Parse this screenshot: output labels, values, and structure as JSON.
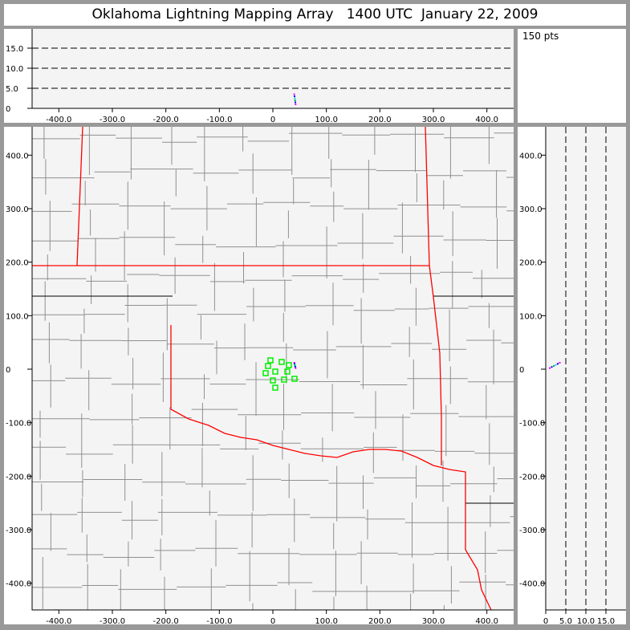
{
  "title": "Oklahoma Lightning Mapping Array   1400 UTC  January 22, 2009",
  "info": {
    "points_label": "150 pts"
  },
  "colors": {
    "state_border": "#ff0000",
    "county_border": "#909090",
    "station": "#00ee00",
    "plot_bg": "#f4f4f4",
    "frame_bg": "#999999"
  },
  "chart_data": {
    "type": "scatter",
    "plan_view": {
      "xlim": [
        -450,
        450
      ],
      "ylim": [
        -450,
        450
      ],
      "x_ticks": [
        "-400.0",
        "-300.0",
        "-200.0",
        "-100.0",
        "0",
        "100.0",
        "200.0",
        "300.0",
        "400.0"
      ],
      "x_tick_values": [
        -400,
        -300,
        -200,
        -100,
        0,
        100,
        200,
        300,
        400
      ],
      "y_ticks": [
        "400.0",
        "300.0",
        "200.0",
        "100.0",
        "0",
        "-100.0",
        "-200.0",
        "-300.0",
        "-400.0"
      ],
      "y_tick_values": [
        400,
        300,
        200,
        100,
        0,
        -100,
        -200,
        -300,
        -400
      ]
    },
    "altitude_ew": {
      "xlim": [
        -450,
        450
      ],
      "ylim": [
        0,
        20
      ],
      "y_ticks": [
        "15.0",
        "10.0",
        "5.0",
        "0"
      ],
      "y_tick_values": [
        15,
        10,
        5,
        0
      ],
      "dashed_grid": [
        5,
        10,
        15
      ]
    },
    "altitude_ns": {
      "xlim": [
        0,
        20
      ],
      "ylim": [
        -450,
        450
      ],
      "x_ticks": [
        "0",
        "5.0",
        "10.0",
        "15.0"
      ],
      "x_tick_values": [
        0,
        5,
        10,
        15
      ],
      "dashed_grid": [
        5,
        10,
        15
      ]
    },
    "stations": [
      {
        "x": -4.5,
        "y": 16.5
      },
      {
        "x": -9,
        "y": 6
      },
      {
        "x": 16.5,
        "y": 13.5
      },
      {
        "x": 30,
        "y": 7.5
      },
      {
        "x": -13.5,
        "y": -7.5
      },
      {
        "x": 4.5,
        "y": -4.5
      },
      {
        "x": 27,
        "y": -4.5
      },
      {
        "x": 0,
        "y": -21
      },
      {
        "x": 21,
        "y": -19.5
      },
      {
        "x": 40.5,
        "y": -18
      },
      {
        "x": 4.5,
        "y": -34.5
      }
    ],
    "sources": [
      {
        "x": 40,
        "y": 12,
        "z": 3.5,
        "color": "#ff00ff"
      },
      {
        "x": 40.5,
        "y": 10,
        "z": 3.0,
        "color": "#0000ff"
      },
      {
        "x": 41,
        "y": 8,
        "z": 2.5,
        "color": "#00cccc"
      },
      {
        "x": 41.5,
        "y": 6,
        "z": 2.0,
        "color": "#00aa66"
      },
      {
        "x": 42,
        "y": 4,
        "z": 1.5,
        "color": "#0000ff"
      },
      {
        "x": 42.5,
        "y": 2,
        "z": 1.0,
        "color": "#ff00ff"
      }
    ]
  }
}
